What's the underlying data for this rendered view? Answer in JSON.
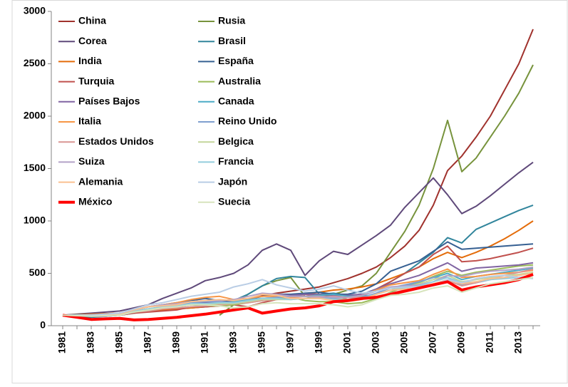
{
  "chart_data": {
    "type": "line",
    "categories": [
      "1981",
      null,
      "1983",
      null,
      "1985",
      null,
      "1987",
      null,
      "1989",
      null,
      "1991",
      null,
      "1993",
      null,
      "1995",
      null,
      "1997",
      null,
      "1999",
      null,
      "2001",
      null,
      "2003",
      null,
      "2005",
      null,
      "2007",
      null,
      "2009",
      null,
      "2011",
      null,
      "2013",
      null
    ],
    "ylim": [
      0,
      3000
    ],
    "yticks": [
      0,
      500,
      1000,
      1500,
      2000,
      2500,
      3000
    ],
    "grid": false,
    "series": [
      {
        "name": "China",
        "color": "#A0322D",
        "values": [
          100,
          105,
          110,
          115,
          120,
          130,
          140,
          150,
          160,
          170,
          180,
          200,
          230,
          260,
          290,
          310,
          330,
          350,
          370,
          410,
          450,
          500,
          560,
          650,
          760,
          910,
          1150,
          1480,
          1620,
          1800,
          2000,
          2250,
          2500,
          2830
        ]
      },
      {
        "name": "Rusia",
        "color": "#77933C",
        "values": [
          null,
          null,
          null,
          null,
          null,
          null,
          null,
          null,
          null,
          null,
          null,
          100,
          200,
          300,
          380,
          430,
          460,
          280,
          260,
          300,
          340,
          380,
          500,
          700,
          900,
          1150,
          1500,
          1960,
          1470,
          1600,
          1800,
          2000,
          2220,
          2490
        ]
      },
      {
        "name": "Corea",
        "color": "#5F497A",
        "values": [
          100,
          110,
          120,
          130,
          140,
          170,
          200,
          260,
          310,
          360,
          430,
          460,
          500,
          580,
          720,
          780,
          720,
          480,
          620,
          710,
          680,
          770,
          860,
          960,
          1130,
          1270,
          1410,
          1250,
          1070,
          1140,
          1240,
          1350,
          1460,
          1560
        ]
      },
      {
        "name": "Brasil",
        "color": "#31859C",
        "values": [
          100,
          90,
          80,
          90,
          100,
          120,
          140,
          160,
          180,
          200,
          210,
          220,
          240,
          300,
          380,
          450,
          470,
          460,
          300,
          310,
          290,
          300,
          350,
          420,
          500,
          600,
          700,
          840,
          790,
          920,
          980,
          1040,
          1100,
          1150
        ]
      },
      {
        "name": "India",
        "color": "#E46C0A",
        "values": [
          100,
          105,
          110,
          115,
          120,
          130,
          140,
          150,
          160,
          170,
          180,
          190,
          210,
          230,
          250,
          270,
          290,
          300,
          320,
          340,
          350,
          370,
          400,
          450,
          500,
          560,
          640,
          700,
          650,
          700,
          760,
          830,
          910,
          1000
        ]
      },
      {
        "name": "España",
        "color": "#366092",
        "values": [
          100,
          100,
          100,
          110,
          120,
          150,
          180,
          200,
          220,
          240,
          260,
          240,
          230,
          250,
          280,
          300,
          300,
          310,
          320,
          300,
          300,
          330,
          400,
          520,
          570,
          620,
          710,
          800,
          730,
          740,
          750,
          760,
          770,
          780
        ]
      },
      {
        "name": "Turquia",
        "color": "#C0504D",
        "values": [
          100,
          100,
          90,
          90,
          100,
          120,
          130,
          140,
          150,
          180,
          180,
          190,
          200,
          180,
          220,
          250,
          280,
          300,
          280,
          300,
          250,
          280,
          350,
          420,
          500,
          560,
          680,
          760,
          610,
          620,
          640,
          670,
          700,
          740
        ]
      },
      {
        "name": "Australia",
        "color": "#9BBB59",
        "values": [
          100,
          105,
          100,
          100,
          110,
          130,
          150,
          170,
          190,
          200,
          190,
          190,
          200,
          220,
          240,
          260,
          270,
          240,
          230,
          230,
          210,
          220,
          260,
          320,
          370,
          410,
          470,
          520,
          480,
          510,
          530,
          550,
          570,
          580
        ]
      },
      {
        "name": "Países Bajos",
        "color": "#8064A2",
        "values": [
          100,
          100,
          100,
          110,
          110,
          130,
          150,
          170,
          200,
          210,
          220,
          220,
          230,
          250,
          300,
          300,
          290,
          300,
          300,
          290,
          290,
          300,
          350,
          400,
          440,
          480,
          540,
          600,
          520,
          550,
          560,
          570,
          580,
          600
        ]
      },
      {
        "name": "Canada",
        "color": "#4BACC6",
        "values": [
          100,
          100,
          100,
          110,
          120,
          140,
          160,
          180,
          200,
          210,
          210,
          210,
          230,
          250,
          260,
          270,
          280,
          280,
          290,
          300,
          280,
          280,
          300,
          340,
          380,
          420,
          460,
          500,
          440,
          470,
          490,
          510,
          530,
          550
        ]
      },
      {
        "name": "Italia",
        "color": "#F79646",
        "values": [
          100,
          100,
          100,
          110,
          120,
          150,
          180,
          200,
          220,
          250,
          270,
          280,
          250,
          260,
          280,
          280,
          270,
          280,
          280,
          270,
          270,
          290,
          340,
          390,
          410,
          430,
          490,
          540,
          460,
          470,
          490,
          500,
          510,
          530
        ]
      },
      {
        "name": "Reino Unido",
        "color": "#7F9FCF",
        "values": [
          100,
          95,
          90,
          90,
          100,
          130,
          150,
          170,
          190,
          220,
          230,
          230,
          220,
          240,
          260,
          270,
          280,
          280,
          270,
          260,
          250,
          270,
          310,
          360,
          390,
          420,
          460,
          460,
          390,
          410,
          440,
          460,
          480,
          510
        ]
      },
      {
        "name": "Estados Unidos",
        "color": "#D99694",
        "values": [
          100,
          100,
          100,
          110,
          120,
          130,
          140,
          160,
          170,
          180,
          190,
          200,
          210,
          220,
          240,
          250,
          260,
          260,
          270,
          280,
          270,
          270,
          280,
          310,
          340,
          370,
          400,
          430,
          380,
          410,
          450,
          480,
          510,
          540
        ]
      },
      {
        "name": "Belgica",
        "color": "#C3D69B",
        "values": [
          100,
          100,
          100,
          105,
          110,
          130,
          150,
          170,
          190,
          200,
          200,
          210,
          210,
          230,
          250,
          250,
          250,
          260,
          260,
          250,
          250,
          260,
          300,
          340,
          370,
          400,
          440,
          480,
          420,
          440,
          460,
          480,
          490,
          510
        ]
      },
      {
        "name": "Suiza",
        "color": "#B3A2C7",
        "values": [
          100,
          100,
          105,
          110,
          120,
          150,
          180,
          200,
          210,
          230,
          240,
          240,
          250,
          280,
          310,
          300,
          280,
          280,
          280,
          270,
          270,
          290,
          330,
          370,
          380,
          390,
          420,
          480,
          470,
          500,
          520,
          530,
          540,
          560
        ]
      },
      {
        "name": "Francia",
        "color": "#93CDDD",
        "values": [
          100,
          100,
          100,
          105,
          110,
          140,
          160,
          180,
          190,
          210,
          210,
          220,
          220,
          240,
          260,
          260,
          250,
          260,
          260,
          250,
          240,
          260,
          300,
          340,
          360,
          380,
          420,
          460,
          410,
          420,
          440,
          450,
          460,
          480
        ]
      },
      {
        "name": "Alemania",
        "color": "#FAC090",
        "values": [
          100,
          95,
          95,
          100,
          110,
          150,
          180,
          190,
          200,
          230,
          240,
          250,
          240,
          260,
          300,
          290,
          260,
          260,
          260,
          240,
          230,
          250,
          300,
          340,
          350,
          360,
          400,
          440,
          400,
          420,
          450,
          460,
          480,
          500
        ]
      },
      {
        "name": "Japón",
        "color": "#B9CDE5",
        "values": [
          100,
          100,
          100,
          110,
          120,
          160,
          200,
          220,
          250,
          280,
          300,
          320,
          370,
          400,
          440,
          390,
          360,
          330,
          350,
          380,
          340,
          310,
          330,
          360,
          370,
          370,
          390,
          440,
          410,
          450,
          470,
          480,
          460,
          450
        ]
      },
      {
        "name": "México",
        "color": "#FF0000",
        "values": [
          100,
          80,
          60,
          65,
          70,
          55,
          60,
          70,
          80,
          95,
          110,
          130,
          150,
          170,
          120,
          140,
          160,
          170,
          190,
          230,
          240,
          260,
          270,
          300,
          330,
          360,
          390,
          420,
          340,
          370,
          390,
          410,
          440,
          490
        ]
      },
      {
        "name": "Suecia",
        "color": "#D7E4BD",
        "values": [
          100,
          95,
          90,
          95,
          100,
          130,
          150,
          170,
          180,
          200,
          200,
          190,
          170,
          180,
          210,
          220,
          210,
          210,
          210,
          200,
          180,
          200,
          250,
          290,
          300,
          320,
          360,
          380,
          320,
          360,
          400,
          420,
          440,
          460
        ]
      }
    ]
  }
}
